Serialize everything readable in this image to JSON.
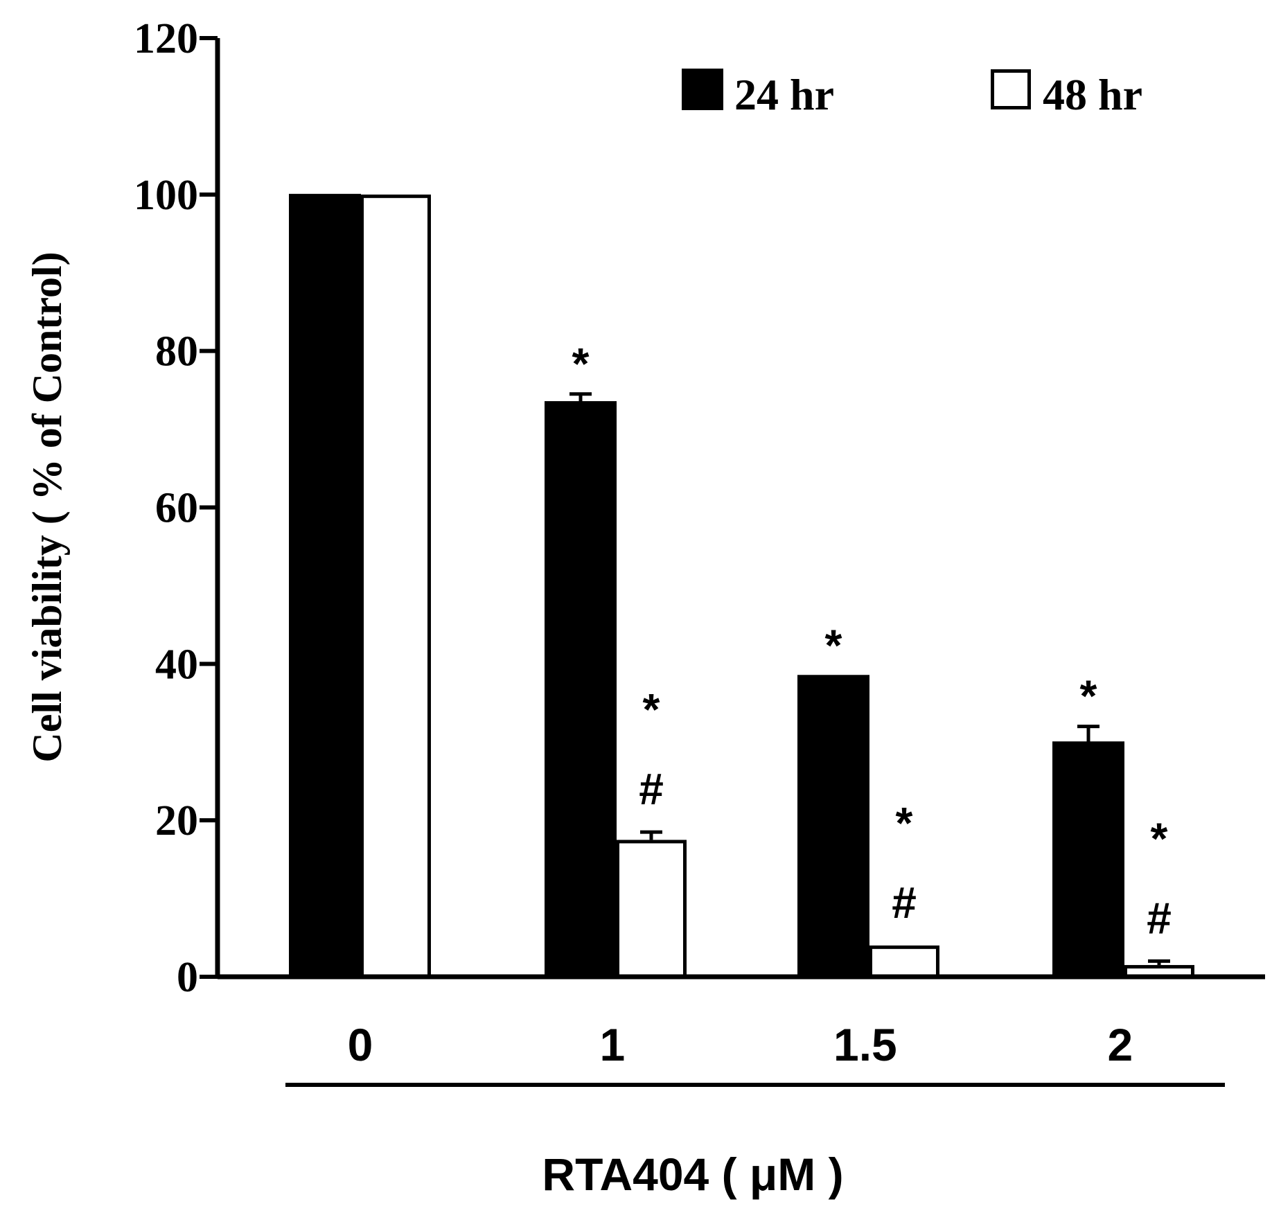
{
  "chart_data": {
    "type": "bar",
    "title": "",
    "xlabel": "RTA404 ( μM )",
    "ylabel": "Cell viability ( % of Control)",
    "ylim": [
      0,
      120
    ],
    "yticks": [
      0,
      20,
      40,
      60,
      80,
      100,
      120
    ],
    "categories": [
      "0",
      "1",
      "1.5",
      "2"
    ],
    "series": [
      {
        "name": "24 hr",
        "fill": "#000000",
        "values": [
          100,
          73.5,
          38.5,
          30
        ],
        "errors": [
          0,
          1,
          0,
          2
        ]
      },
      {
        "name": "48 hr",
        "fill": "#ffffff",
        "values": [
          100,
          17.5,
          4,
          1.5
        ],
        "errors": [
          0,
          1,
          0,
          0.5
        ]
      }
    ],
    "annotations": [
      {
        "category": "1",
        "series": "24 hr",
        "labels": [
          "*"
        ]
      },
      {
        "category": "1",
        "series": "48 hr",
        "labels": [
          "*",
          "#"
        ]
      },
      {
        "category": "1.5",
        "series": "24 hr",
        "labels": [
          "*"
        ]
      },
      {
        "category": "1.5",
        "series": "48 hr",
        "labels": [
          "*",
          "#"
        ]
      },
      {
        "category": "2",
        "series": "24 hr",
        "labels": [
          "*"
        ]
      },
      {
        "category": "2",
        "series": "48 hr",
        "labels": [
          "*",
          "#"
        ]
      }
    ],
    "legend": "top-right"
  }
}
